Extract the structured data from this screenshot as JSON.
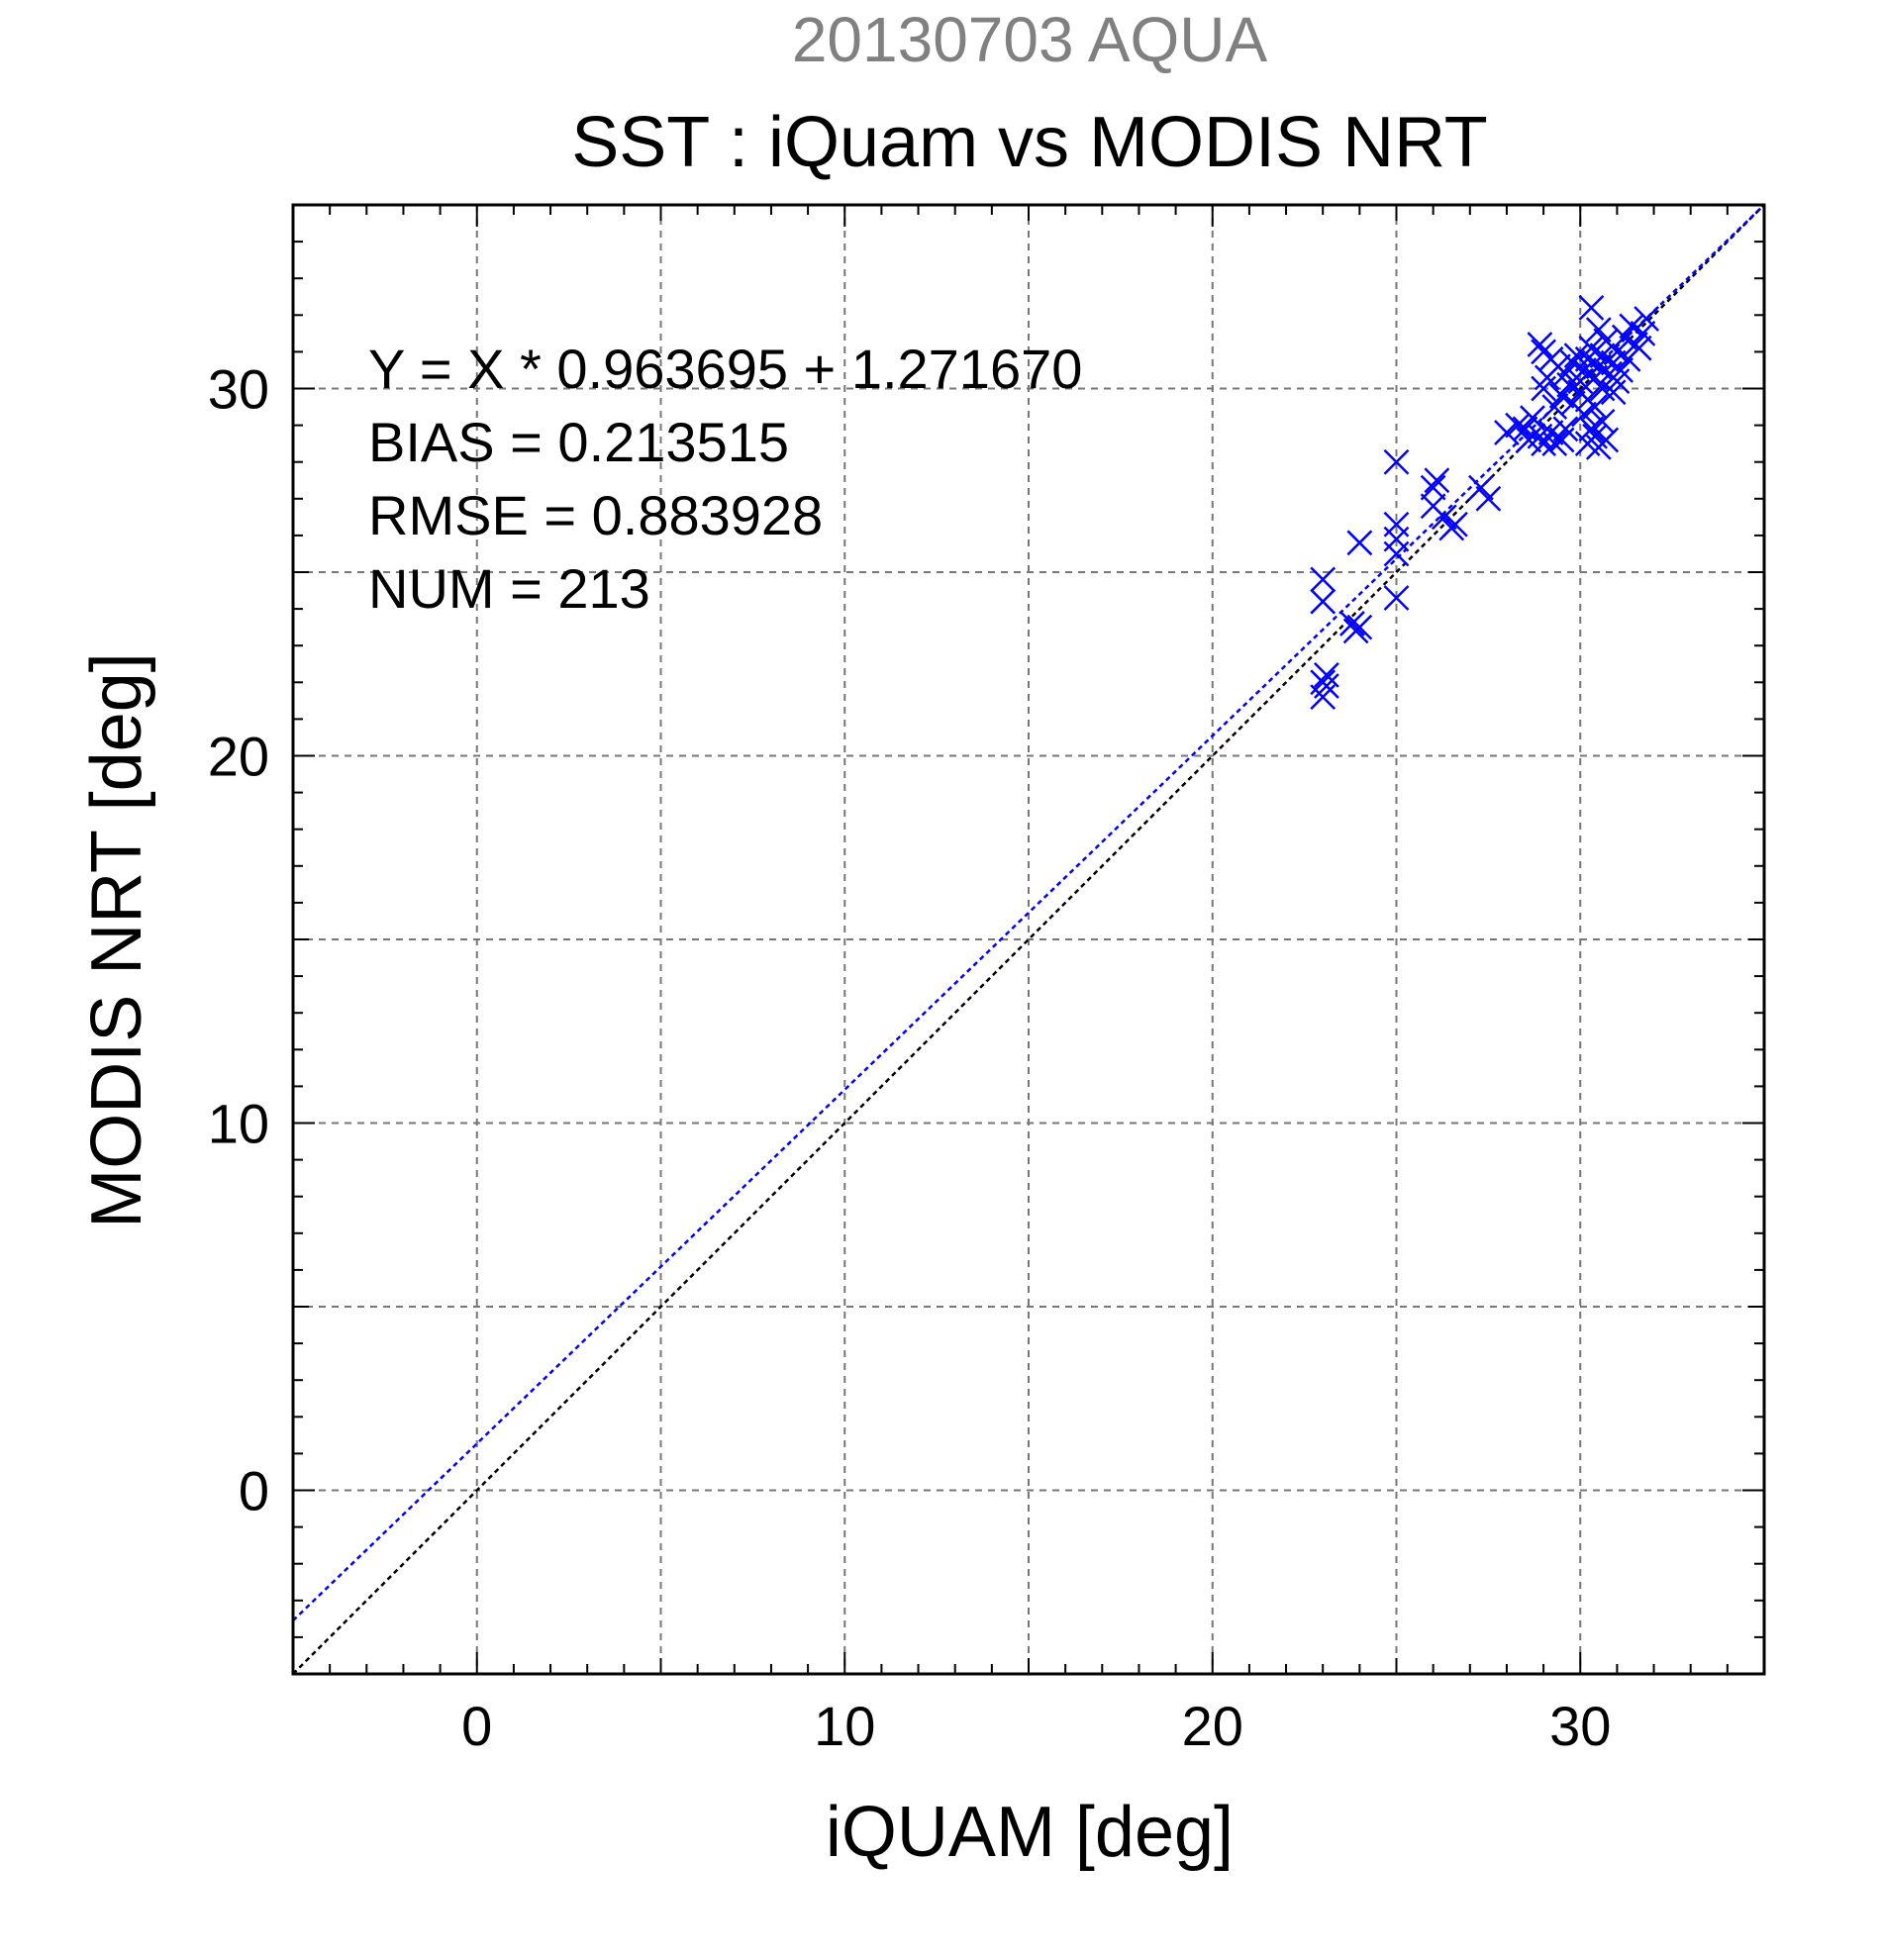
{
  "colors": {
    "background": "#ffffff",
    "axis": "#000000",
    "grid": "#777777",
    "subtitle": "#808080",
    "points": "#0000ff",
    "fit_line": "#0000ff",
    "identity_line": "#000000"
  },
  "chart_data": {
    "type": "scatter",
    "title": "SST : iQuam vs MODIS NRT",
    "subtitle": "20130703 AQUA",
    "xlabel": "iQUAM [deg]",
    "ylabel": "MODIS NRT [deg]",
    "xlim": [
      -5,
      35
    ],
    "ylim": [
      -5,
      35
    ],
    "xticks": [
      "0",
      "10",
      "20",
      "30"
    ],
    "yticks": [
      "0",
      "10",
      "20",
      "30"
    ],
    "grid": true,
    "marker": "x",
    "annotations": [
      "Y = X * 0.963695 + 1.271670",
      "BIAS = 0.213515",
      "RMSE = 0.883928",
      "NUM = 213"
    ],
    "fit": {
      "slope": 0.963695,
      "intercept": 1.27167
    },
    "points": [
      [
        23.0,
        24.8
      ],
      [
        23.0,
        24.2
      ],
      [
        23.0,
        22.0
      ],
      [
        23.1,
        21.9
      ],
      [
        23.0,
        21.6
      ],
      [
        23.1,
        22.2
      ],
      [
        23.8,
        23.6
      ],
      [
        24.0,
        23.5
      ],
      [
        23.9,
        23.4
      ],
      [
        24.0,
        25.8
      ],
      [
        25.0,
        28.0
      ],
      [
        25.0,
        26.3
      ],
      [
        25.0,
        25.9
      ],
      [
        25.0,
        25.5
      ],
      [
        25.0,
        24.3
      ],
      [
        26.0,
        27.3
      ],
      [
        26.1,
        27.5
      ],
      [
        26.0,
        26.8
      ],
      [
        26.3,
        26.5
      ],
      [
        26.5,
        26.2
      ],
      [
        26.6,
        26.3
      ],
      [
        27.3,
        27.3
      ],
      [
        27.5,
        27.0
      ],
      [
        28.0,
        28.8
      ],
      [
        28.3,
        29.0
      ],
      [
        28.5,
        28.9
      ],
      [
        28.7,
        29.2
      ],
      [
        28.6,
        28.6
      ],
      [
        28.9,
        28.7
      ],
      [
        29.0,
        28.5
      ],
      [
        29.2,
        28.8
      ],
      [
        29.3,
        28.5
      ],
      [
        29.5,
        28.6
      ],
      [
        29.6,
        28.9
      ],
      [
        28.9,
        31.2
      ],
      [
        29.0,
        31.0
      ],
      [
        29.2,
        30.8
      ],
      [
        29.4,
        30.6
      ],
      [
        29.1,
        30.3
      ],
      [
        29.0,
        30.0
      ],
      [
        29.3,
        29.5
      ],
      [
        29.5,
        29.8
      ],
      [
        29.7,
        30.1
      ],
      [
        29.6,
        30.4
      ],
      [
        29.8,
        29.6
      ],
      [
        29.9,
        30.9
      ],
      [
        30.0,
        30.2
      ],
      [
        30.1,
        30.5
      ],
      [
        30.0,
        29.9
      ],
      [
        30.2,
        30.8
      ],
      [
        30.3,
        31.1
      ],
      [
        30.2,
        29.7
      ],
      [
        30.4,
        30.3
      ],
      [
        30.5,
        30.6
      ],
      [
        30.6,
        30.0
      ],
      [
        30.4,
        29.5
      ],
      [
        30.1,
        29.3
      ],
      [
        29.8,
        30.7
      ],
      [
        30.3,
        32.2
      ],
      [
        30.5,
        31.6
      ],
      [
        30.7,
        31.3
      ],
      [
        30.6,
        30.9
      ],
      [
        30.8,
        30.4
      ],
      [
        30.9,
        30.7
      ],
      [
        31.0,
        30.2
      ],
      [
        31.0,
        31.0
      ],
      [
        31.2,
        31.4
      ],
      [
        31.3,
        30.8
      ],
      [
        31.4,
        31.7
      ],
      [
        31.5,
        31.2
      ],
      [
        31.7,
        31.5
      ],
      [
        31.8,
        31.9
      ],
      [
        31.6,
        31.1
      ],
      [
        31.1,
        30.5
      ],
      [
        30.9,
        29.9
      ],
      [
        30.4,
        28.7
      ],
      [
        30.5,
        28.4
      ],
      [
        30.7,
        28.6
      ],
      [
        30.3,
        28.9
      ],
      [
        30.6,
        29.1
      ],
      [
        30.2,
        28.5
      ]
    ]
  }
}
